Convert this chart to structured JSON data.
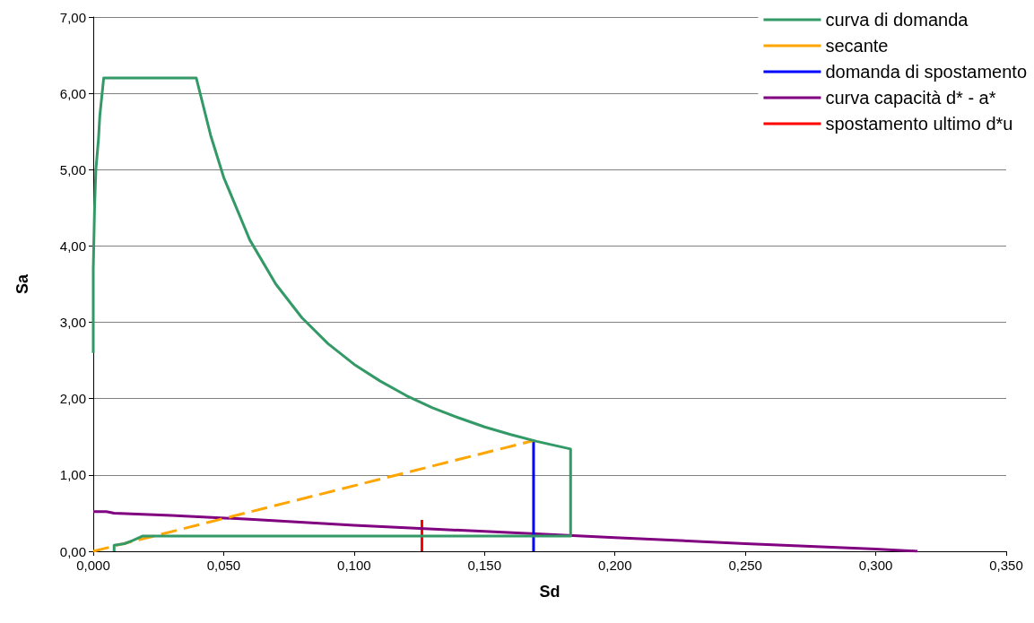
{
  "chart_data": {
    "type": "line",
    "xlabel": "Sd",
    "ylabel": "Sa",
    "xlim": [
      0,
      0.35
    ],
    "ylim": [
      0,
      7
    ],
    "xticks": [
      {
        "value": 0,
        "label": "0,000"
      },
      {
        "value": 0.05,
        "label": "0,050"
      },
      {
        "value": 0.1,
        "label": "0,100"
      },
      {
        "value": 0.15,
        "label": "0,150"
      },
      {
        "value": 0.2,
        "label": "0,200"
      },
      {
        "value": 0.25,
        "label": "0,250"
      },
      {
        "value": 0.3,
        "label": "0,300"
      },
      {
        "value": 0.35,
        "label": "0,350"
      }
    ],
    "yticks": [
      {
        "value": 0,
        "label": "0,00"
      },
      {
        "value": 1,
        "label": "1,00"
      },
      {
        "value": 2,
        "label": "2,00"
      },
      {
        "value": 3,
        "label": "3,00"
      },
      {
        "value": 4,
        "label": "4,00"
      },
      {
        "value": 5,
        "label": "5,00"
      },
      {
        "value": 6,
        "label": "6,00"
      },
      {
        "value": 7,
        "label": "7,00"
      }
    ],
    "grid": "y",
    "legend": "top right",
    "marker": "none",
    "line_style": "solid",
    "series": [
      {
        "name": "curva di domanda",
        "color": "#339966",
        "x": [
          0.008,
          0.008,
          0.012,
          0.015,
          0.019,
          0.183,
          0.183,
          0.17,
          0.16,
          0.15,
          0.14,
          0.13,
          0.12,
          0.11,
          0.1,
          0.09,
          0.08,
          0.07,
          0.06,
          0.05,
          0.045,
          0.0395,
          0.004,
          0.0025,
          0.002,
          0.001,
          0.0005,
          0,
          0
        ],
        "values": [
          0,
          0.08,
          0.1,
          0.14,
          0.2,
          0.2,
          1.34,
          1.44,
          1.53,
          1.63,
          1.75,
          1.88,
          2.04,
          2.23,
          2.45,
          2.72,
          3.06,
          3.5,
          4.08,
          4.9,
          5.45,
          6.2,
          6.2,
          5.7,
          5.4,
          5.0,
          4.5,
          3.7,
          2.6
        ]
      },
      {
        "name": "secante",
        "color": "#ffa500",
        "line_style": "dashed",
        "x": [
          0,
          0.1688
        ],
        "values": [
          0,
          1.45
        ]
      },
      {
        "name": "domanda di spostamento",
        "color": "#0000ff",
        "x": [
          0.1688,
          0.1688
        ],
        "values": [
          0,
          1.45
        ]
      },
      {
        "name": "curva capacità d* - a*",
        "color": "#800080",
        "x": [
          0,
          0.005,
          0.008,
          0.03,
          0.06,
          0.1,
          0.15,
          0.2,
          0.25,
          0.3,
          0.316
        ],
        "values": [
          0.52,
          0.52,
          0.5,
          0.47,
          0.42,
          0.34,
          0.26,
          0.18,
          0.1,
          0.03,
          0
        ]
      },
      {
        "name": "spostamento ultimo d*u",
        "color": "#ff0000",
        "x": [
          0.126,
          0.126
        ],
        "values": [
          0,
          0.41
        ]
      }
    ]
  }
}
